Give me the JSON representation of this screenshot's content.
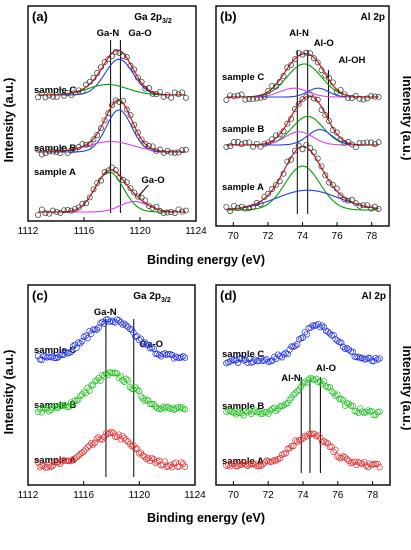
{
  "figure": {
    "ylabel": "Intensity (a.u.)",
    "xlabel": "Binding energy (eV)"
  },
  "chart_data": [
    {
      "panel": "(a)",
      "type": "line",
      "core": "Ga 2p",
      "core_sub": "3/2",
      "xlabel": "Binding energy (eV)",
      "ylabel": "Intensity (a.u.)",
      "xlim": [
        1112,
        1124
      ],
      "xticks": [
        1112,
        1116,
        1120,
        1124
      ],
      "peak_positions": [
        {
          "name": "Ga-N",
          "x": 1117.9
        },
        {
          "name": "Ga-O",
          "x": 1118.6
        }
      ],
      "extra_label": "Ga-O",
      "samples": [
        "sample A",
        "sample B",
        "sample C"
      ],
      "series": [
        {
          "sample": "sample A",
          "components": [
            {
              "center": 1117.8,
              "amp": 0.95,
              "sigma": 1.0,
              "color": "#00a000"
            },
            {
              "center": 1119.6,
              "amp": 0.25,
              "sigma": 1.0,
              "color": "#e040e0"
            }
          ]
        },
        {
          "sample": "sample B",
          "components": [
            {
              "center": 1118.5,
              "amp": 1.0,
              "sigma": 0.9,
              "color": "#2040e0"
            },
            {
              "center": 1117.9,
              "amp": 0.25,
              "sigma": 1.6,
              "color": "#e040e0"
            }
          ]
        },
        {
          "sample": "sample C",
          "components": [
            {
              "center": 1118.5,
              "amp": 0.85,
              "sigma": 1.0,
              "color": "#2040e0"
            },
            {
              "center": 1117.7,
              "amp": 0.25,
              "sigma": 1.4,
              "color": "#00a000"
            }
          ]
        }
      ]
    },
    {
      "panel": "(b)",
      "type": "line",
      "core": "Al 2p",
      "core_sub": "",
      "xlabel": "Binding energy (eV)",
      "ylabel": "Intensity (a.u.)",
      "xlim": [
        69,
        79
      ],
      "xticks": [
        70,
        72,
        74,
        76,
        78
      ],
      "peak_positions": [
        {
          "name": "Al-N",
          "x": 73.7
        },
        {
          "name": "Al-O",
          "x": 74.3
        },
        {
          "name": "Al-OH",
          "x": 75.5
        }
      ],
      "samples": [
        "sample A",
        "sample B",
        "sample C"
      ],
      "series": [
        {
          "sample": "sample A",
          "components": [
            {
              "center": 74.0,
              "amp": 1.0,
              "sigma": 1.0,
              "color": "#00a000"
            },
            {
              "center": 74.3,
              "amp": 0.45,
              "sigma": 1.8,
              "color": "#2040e0"
            }
          ]
        },
        {
          "sample": "sample B",
          "components": [
            {
              "center": 74.3,
              "amp": 0.65,
              "sigma": 0.9,
              "color": "#00a000"
            },
            {
              "center": 75.0,
              "amp": 0.35,
              "sigma": 0.7,
              "color": "#2040e0"
            },
            {
              "center": 73.8,
              "amp": 0.3,
              "sigma": 0.8,
              "color": "#e040e0"
            }
          ]
        },
        {
          "sample": "sample C",
          "components": [
            {
              "center": 74.1,
              "amp": 0.75,
              "sigma": 1.0,
              "color": "#00a000"
            },
            {
              "center": 74.9,
              "amp": 0.2,
              "sigma": 0.6,
              "color": "#2040e0"
            },
            {
              "center": 73.5,
              "amp": 0.2,
              "sigma": 0.8,
              "color": "#e040e0"
            }
          ]
        }
      ]
    },
    {
      "panel": "(c)",
      "type": "scatter",
      "core": "Ga 2p",
      "core_sub": "3/2",
      "xlabel": "Binding energy (eV)",
      "ylabel": "Intensity (a.u.)",
      "xlim": [
        1112,
        1124
      ],
      "xticks": [
        1112,
        1116,
        1120,
        1124
      ],
      "peak_positions": [
        {
          "name": "Ga-N",
          "x": 1117.6
        },
        {
          "name": "Ga-O",
          "x": 1119.6
        }
      ],
      "samples": [
        "sample A",
        "sample B",
        "sample C"
      ],
      "series": [
        {
          "sample": "sample A",
          "color": "#e03030",
          "center": 1118.0,
          "amp": 0.9,
          "sigma": 1.5
        },
        {
          "sample": "sample B",
          "color": "#20c020",
          "center": 1118.0,
          "amp": 1.05,
          "sigma": 1.6
        },
        {
          "sample": "sample C",
          "color": "#2030e0",
          "center": 1118.0,
          "amp": 1.1,
          "sigma": 1.7
        }
      ]
    },
    {
      "panel": "(d)",
      "type": "scatter",
      "core": "Al 2p",
      "core_sub": "",
      "xlabel": "Binding energy (eV)",
      "ylabel": "Intensity (a.u.)",
      "xlim": [
        69,
        79
      ],
      "xticks": [
        70,
        72,
        74,
        76,
        78
      ],
      "peak_positions": [
        {
          "name": "Al-N",
          "x": 73.9
        },
        {
          "name": "Al-O",
          "x": 74.4
        },
        {
          "name": "",
          "x": 75.0
        }
      ],
      "samples": [
        "sample A",
        "sample B",
        "sample C"
      ],
      "series": [
        {
          "sample": "sample A",
          "color": "#e03030",
          "center": 74.4,
          "amp": 0.95,
          "sigma": 1.1
        },
        {
          "sample": "sample B",
          "color": "#20c020",
          "center": 74.7,
          "amp": 1.05,
          "sigma": 1.1
        },
        {
          "sample": "sample C",
          "color": "#2030e0",
          "center": 74.9,
          "amp": 1.1,
          "sigma": 1.1
        }
      ]
    }
  ]
}
